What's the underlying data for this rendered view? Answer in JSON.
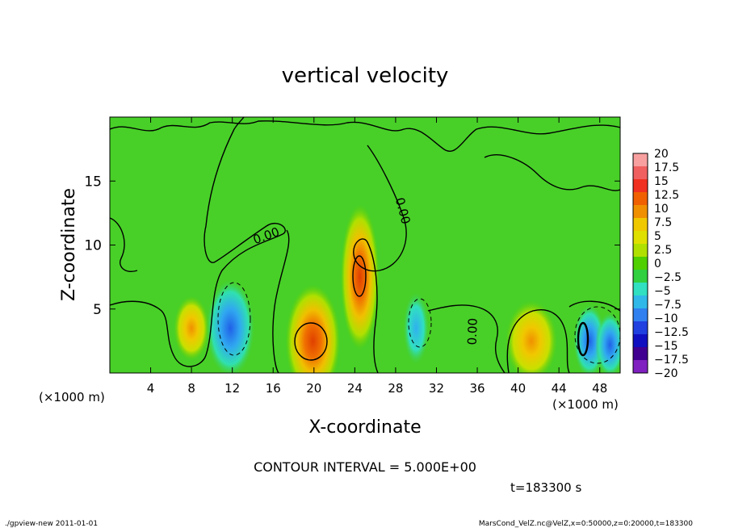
{
  "chart_data": {
    "type": "heatmap",
    "title": "vertical velocity",
    "xlabel": "X-coordinate",
    "ylabel": "Z-coordinate",
    "x_unit_label": "(×1000 m)",
    "x_unit_label_right": "(×1000 m)",
    "xlim": [
      0,
      50
    ],
    "ylim": [
      0,
      20
    ],
    "x_ticks": [
      4,
      8,
      12,
      16,
      20,
      24,
      28,
      32,
      36,
      40,
      44,
      48
    ],
    "y_ticks": [
      5,
      10,
      15
    ],
    "colorbar": {
      "levels": [
        "20",
        "17.5",
        "15",
        "12.5",
        "10",
        "7.5",
        "5",
        "2.5",
        "0",
        "-2.5",
        "-5",
        "-7.5",
        "-10",
        "-12.5",
        "-15",
        "-17.5",
        "-20"
      ],
      "colors": [
        "#f8a0a0",
        "#f06060",
        "#f03020",
        "#f06000",
        "#f09000",
        "#f0c800",
        "#e0e000",
        "#b0e000",
        "#50d000",
        "#30d040",
        "#30e0c0",
        "#30b8e8",
        "#3080f0",
        "#2040e0",
        "#1010c0",
        "#400090",
        "#8020c0"
      ]
    },
    "contour_interval_text": "CONTOUR INTERVAL = 5.000E+00",
    "contour_labels": [
      "0.00",
      "0.00",
      "0.00"
    ],
    "features": [
      {
        "x": 19.9,
        "z": 2.5,
        "w": 11.5,
        "kind": "updraft"
      },
      {
        "x": 24.5,
        "z": 7.5,
        "w": 9.5,
        "kind": "updraft"
      },
      {
        "x": 41.3,
        "z": 2.5,
        "w": 6.5,
        "kind": "updraft"
      },
      {
        "x": 8.0,
        "z": 3.5,
        "w": 5.5,
        "kind": "updraft"
      },
      {
        "x": 11.8,
        "z": 3.5,
        "w": -7.5,
        "kind": "downdraft"
      },
      {
        "x": 47.0,
        "z": 2.5,
        "w": -10.5,
        "kind": "downdraft"
      },
      {
        "x": 49.0,
        "z": 2.2,
        "w": -8.0,
        "kind": "downdraft"
      },
      {
        "x": 30.0,
        "z": 3.5,
        "w": -4.0,
        "kind": "downdraft"
      }
    ],
    "time_text": "t=183300 s"
  },
  "footer": {
    "left": "./gpview-new   2011-01-01",
    "right": "MarsCond_VelZ.nc@VelZ,x=0:50000,z=0:20000,t=183300"
  }
}
